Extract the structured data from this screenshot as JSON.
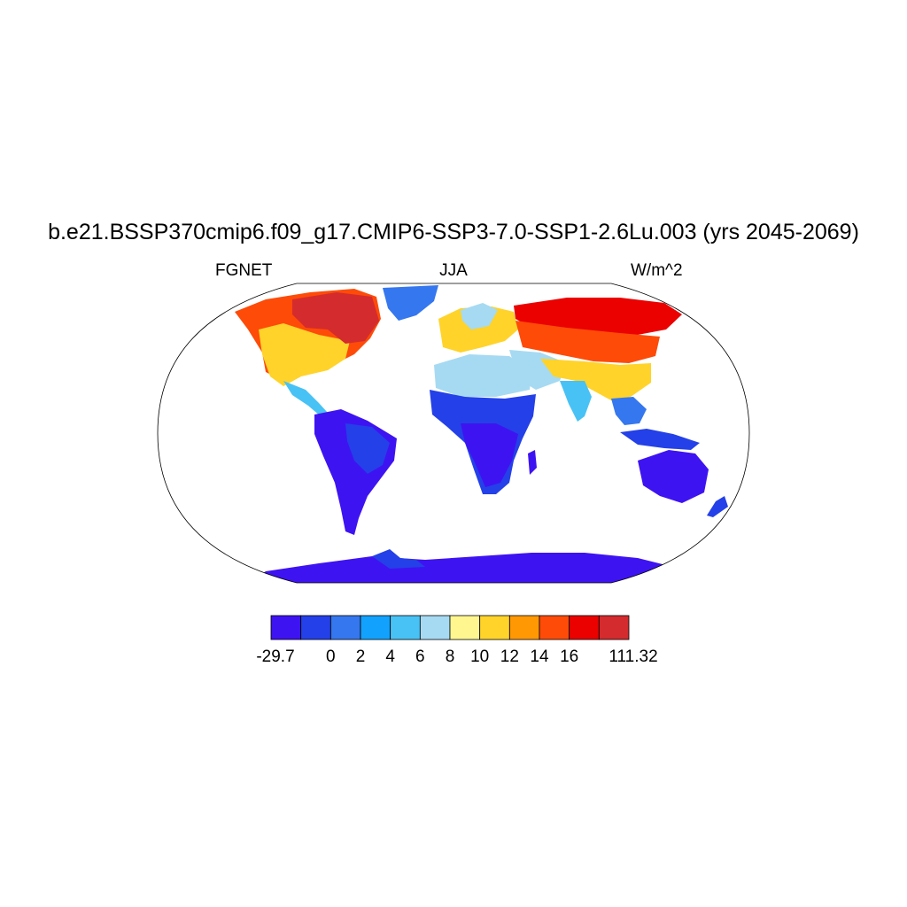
{
  "plot": {
    "title": "b.e21.BSSP370cmip6.f09_g17.CMIP6-SSP3-7.0-SSP1-2.6Lu.003 (yrs 2045-2069)",
    "left_label": "FGNET",
    "center_label": "JJA",
    "right_label": "W/m^2"
  },
  "colorbar": {
    "colors": [
      "#3e13f2",
      "#2440e8",
      "#3577ee",
      "#12a2fe",
      "#48c2f5",
      "#a6daf2",
      "#fff68f",
      "#ffd329",
      "#ff9803",
      "#fe4b08",
      "#ea0100",
      "#d42b2e"
    ],
    "labels": [
      "-29.7",
      "0",
      "2",
      "4",
      "6",
      "8",
      "10",
      "12",
      "14",
      "16",
      "111.32"
    ]
  },
  "map": {
    "projection": "robinson",
    "land_color_note": "shaded field over land only; ocean blank white"
  }
}
